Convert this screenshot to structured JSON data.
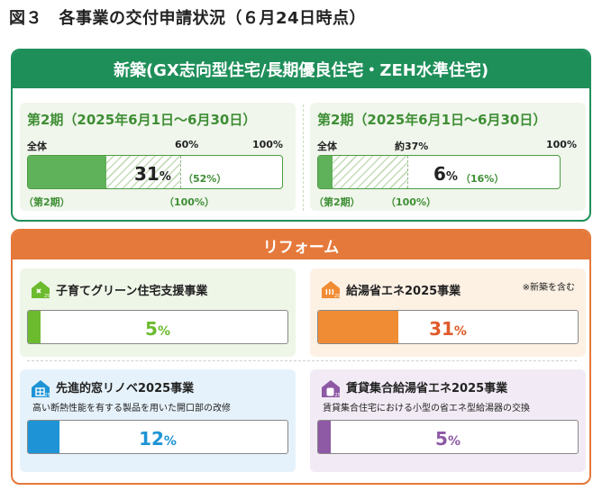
{
  "title": "図３　各事業の交付申請状況（６月24日時点）",
  "colors": {
    "shinchiku_green": "#1f8f5a",
    "reform_orange": "#e5793b",
    "bar_green": "#5fb15a",
    "kosodate_bg": "#eef6e8",
    "kosodate_bar": "#6cbb2f",
    "kyuto_bg": "#fdf1e4",
    "kyuto_bar": "#f08c34",
    "kyuto_text": "#e05a2a",
    "mado_bg": "#e6f2fb",
    "mado_bar": "#1e94d6",
    "chintai_bg": "#f2ebf5",
    "chintai_bar": "#8e59a5"
  },
  "shinchiku": {
    "heading": "新築(GX志向型住宅/長期優良住宅・ZEH水準住宅)",
    "periods": [
      {
        "title": "第2期（2025年6月1日〜6月30日）",
        "label_total": "全体",
        "label_mid": "60%",
        "label_max": "100%",
        "value_text": "31",
        "unit": "%",
        "sub_value_text": "（52%）",
        "below_left": "（第2期）",
        "below_mid": "（100%）"
      },
      {
        "title": "第2期（2025年6月1日〜6月30日）",
        "label_total": "全体",
        "label_mid": "約37%",
        "label_max": "100%",
        "value_text": "6",
        "unit": "%",
        "sub_value_text": "（16%）",
        "below_left": "（第2期）",
        "below_mid": "（100%）"
      }
    ]
  },
  "reform": {
    "heading": "リフォーム",
    "cards": [
      {
        "name": "子育てグリーン住宅支援事業",
        "desc": "",
        "note": "",
        "value_text": "5",
        "unit": "%",
        "icon": "house-green-icon"
      },
      {
        "name": "給湯省エネ2025事業",
        "desc": "",
        "note": "※新築を含む",
        "value_text": "31",
        "unit": "%",
        "icon": "water-heater-icon"
      },
      {
        "name": "先進的窓リノベ2025事業",
        "desc": "高い断熱性能を有する製品を用いた開口部の改修",
        "note": "",
        "value_text": "12",
        "unit": "%",
        "icon": "window-icon"
      },
      {
        "name": "賃貸集合給湯省エネ2025事業",
        "desc": "賃貸集合住宅における小型の省エネ型給湯器の交換",
        "note": "",
        "value_text": "5",
        "unit": "%",
        "icon": "boiler-icon"
      }
    ]
  },
  "chart_data": {
    "type": "bar",
    "orientation": "horizontal",
    "title": "図３　各事業の交付申請状況（６月24日時点）",
    "xlim": [
      0,
      100
    ],
    "categories": [
      "新築 第2期（全体）",
      "新築 第2期（全体）",
      "子育てグリーン住宅支援事業",
      "給湯省エネ2025事業",
      "先進的窓リノベ2025事業",
      "賃貸集合給湯省エネ2025事業"
    ],
    "values": [
      31,
      6,
      5,
      31,
      12,
      5
    ],
    "period_allocation": [
      60,
      37
    ],
    "period_share": [
      52,
      16
    ]
  }
}
